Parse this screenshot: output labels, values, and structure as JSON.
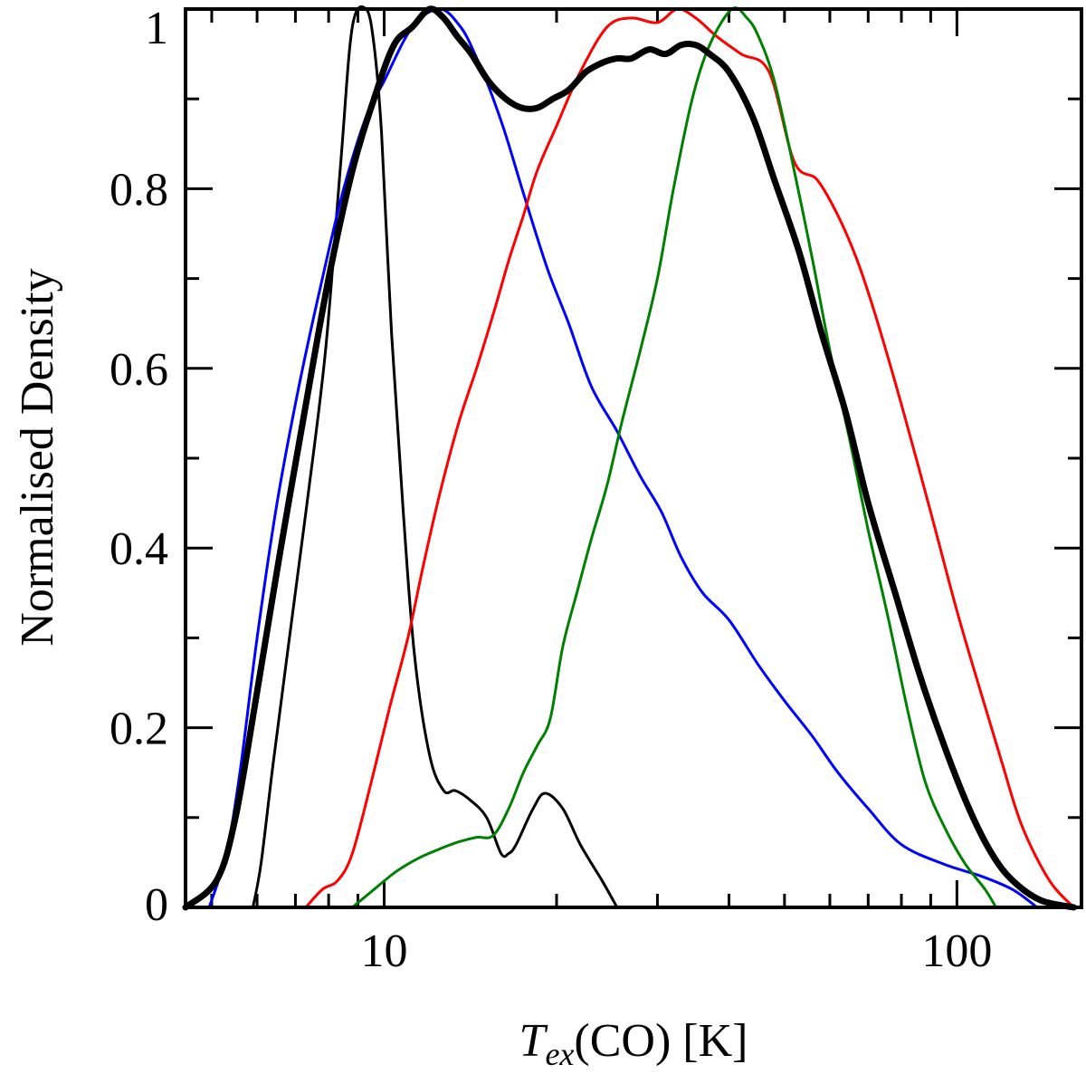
{
  "chart_data": {
    "type": "line",
    "title": "",
    "xlabel": {
      "symbol": "T",
      "subscript": "ex",
      "rest": "(CO) [K]"
    },
    "ylabel": "Normalised Density",
    "xscale": "log",
    "xlim": [
      4.5,
      165
    ],
    "ylim": [
      0,
      1
    ],
    "xticks_major": [
      10,
      100
    ],
    "xtick_labels": [
      "10",
      "100"
    ],
    "xticks_minor": [
      5,
      6,
      7,
      8,
      9,
      20,
      30,
      40,
      50,
      60,
      70,
      80,
      90
    ],
    "yticks_major": [
      0,
      0.2,
      0.4,
      0.6,
      0.8,
      1
    ],
    "ytick_labels": [
      "0",
      "0.2",
      "0.4",
      "0.6",
      "0.8",
      "1"
    ],
    "yticks_minor": [
      0.1,
      0.3,
      0.5,
      0.7,
      0.9
    ],
    "legend": "none",
    "grid": false,
    "series": [
      {
        "name": "thin-black",
        "color": "#000000",
        "width": 3,
        "x": [
          5.9,
          6.1,
          6.4,
          6.8,
          7.3,
          7.9,
          8.4,
          8.8,
          9.3,
          9.6,
          9.9,
          10.3,
          10.8,
          11.3,
          12.0,
          12.7,
          13.3,
          14.1,
          15.1,
          16.0,
          16.5,
          17.0,
          18.2,
          19.1,
          20.5,
          22.0,
          24.0,
          25.5
        ],
        "y": [
          0.0,
          0.05,
          0.16,
          0.29,
          0.44,
          0.62,
          0.83,
          0.98,
          1.0,
          0.96,
          0.86,
          0.64,
          0.44,
          0.28,
          0.17,
          0.13,
          0.13,
          0.12,
          0.1,
          0.06,
          0.06,
          0.07,
          0.11,
          0.127,
          0.11,
          0.07,
          0.03,
          0.0
        ]
      },
      {
        "name": "blue",
        "color": "#0000ff",
        "width": 3,
        "x": [
          4.95,
          5.3,
          5.6,
          6.0,
          6.5,
          7.1,
          7.8,
          8.5,
          9.3,
          10.0,
          11.2,
          12.5,
          13.6,
          14.4,
          15.3,
          16.3,
          17.6,
          19.3,
          21.0,
          23.0,
          25.5,
          28.0,
          30.5,
          33.0,
          36.0,
          40.0,
          45.0,
          50.0,
          56.0,
          62.0,
          70.0,
          80.0,
          95.0,
          110.0,
          125.0,
          138.0
        ],
        "y": [
          0.0,
          0.06,
          0.15,
          0.3,
          0.45,
          0.58,
          0.7,
          0.8,
          0.88,
          0.92,
          0.98,
          1.0,
          0.98,
          0.95,
          0.91,
          0.86,
          0.79,
          0.71,
          0.65,
          0.58,
          0.53,
          0.48,
          0.44,
          0.39,
          0.35,
          0.32,
          0.27,
          0.23,
          0.19,
          0.15,
          0.11,
          0.07,
          0.048,
          0.035,
          0.02,
          0.0
        ]
      },
      {
        "name": "red",
        "color": "#ff0000",
        "width": 3,
        "x": [
          7.3,
          7.8,
          8.3,
          8.8,
          9.5,
          10.2,
          11.0,
          11.7,
          12.5,
          13.5,
          14.5,
          15.5,
          16.5,
          17.5,
          18.5,
          20.0,
          22.0,
          24.5,
          27.0,
          30.0,
          32.5,
          35.0,
          38.0,
          42.0,
          47.0,
          52.0,
          57.0,
          62.0,
          67.0,
          72.0,
          80.0,
          90.0,
          100.0,
          110.0,
          120.0,
          130.0,
          145.0,
          160.0
        ],
        "y": [
          0.0,
          0.02,
          0.03,
          0.06,
          0.14,
          0.22,
          0.3,
          0.38,
          0.46,
          0.54,
          0.6,
          0.66,
          0.72,
          0.77,
          0.82,
          0.87,
          0.93,
          0.98,
          0.99,
          0.985,
          1.0,
          0.99,
          0.97,
          0.95,
          0.93,
          0.83,
          0.81,
          0.77,
          0.72,
          0.66,
          0.56,
          0.44,
          0.33,
          0.24,
          0.16,
          0.09,
          0.03,
          0.0
        ]
      },
      {
        "name": "green",
        "color": "#008000",
        "width": 3,
        "x": [
          8.8,
          9.6,
          10.5,
          11.5,
          12.5,
          13.5,
          14.5,
          15.5,
          16.5,
          17.5,
          18.5,
          19.5,
          20.5,
          21.7,
          23.0,
          24.5,
          26.0,
          28.0,
          30.0,
          32.0,
          34.5,
          37.0,
          40.5,
          43.0,
          45.0,
          48.0,
          52.0,
          56.0,
          60.0,
          65.0,
          70.0,
          76.0,
          82.0,
          88.0,
          95.0,
          103.0,
          112.0,
          117.0
        ],
        "y": [
          0.0,
          0.02,
          0.04,
          0.055,
          0.065,
          0.073,
          0.078,
          0.08,
          0.11,
          0.15,
          0.18,
          0.21,
          0.29,
          0.35,
          0.41,
          0.47,
          0.54,
          0.62,
          0.7,
          0.8,
          0.9,
          0.96,
          1.0,
          0.99,
          0.97,
          0.92,
          0.82,
          0.72,
          0.62,
          0.52,
          0.42,
          0.32,
          0.22,
          0.14,
          0.09,
          0.05,
          0.02,
          0.0
        ]
      },
      {
        "name": "thick-black",
        "color": "#000000",
        "width": 7,
        "x": [
          4.5,
          5.1,
          5.5,
          6.0,
          6.6,
          7.3,
          8.0,
          8.8,
          9.6,
          10.4,
          11.2,
          12.0,
          12.7,
          13.4,
          14.2,
          15.2,
          16.3,
          17.4,
          18.5,
          19.7,
          21.0,
          22.5,
          24.0,
          25.5,
          27.0,
          29.0,
          31.0,
          33.0,
          35.0,
          37.0,
          40.0,
          44.0,
          48.0,
          53.0,
          58.0,
          64.0,
          70.0,
          78.0,
          86.0,
          95.0,
          105.0,
          115.0,
          125.0,
          140.0,
          160.0
        ],
        "y": [
          0.0,
          0.03,
          0.1,
          0.24,
          0.4,
          0.56,
          0.7,
          0.82,
          0.9,
          0.96,
          0.98,
          1.0,
          0.99,
          0.97,
          0.95,
          0.92,
          0.9,
          0.89,
          0.89,
          0.9,
          0.91,
          0.93,
          0.94,
          0.945,
          0.945,
          0.955,
          0.95,
          0.96,
          0.96,
          0.95,
          0.93,
          0.88,
          0.81,
          0.73,
          0.64,
          0.55,
          0.45,
          0.35,
          0.26,
          0.18,
          0.11,
          0.06,
          0.03,
          0.008,
          0.0
        ]
      }
    ]
  }
}
